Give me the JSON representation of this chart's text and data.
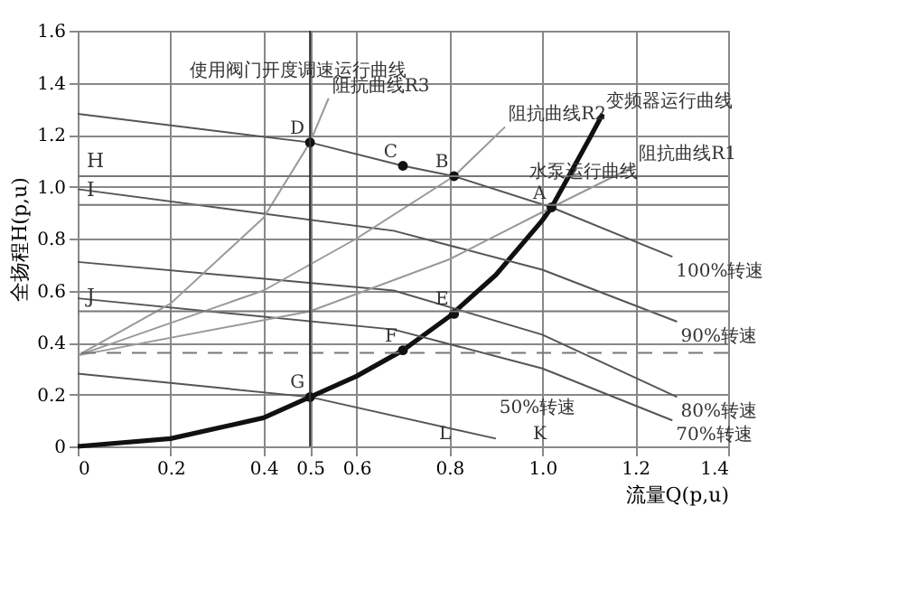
{
  "chart_data": {
    "type": "line",
    "xlabel": "流量Q(p,u)",
    "ylabel": "全扬程H(p,u)",
    "xlim": [
      0,
      1.4
    ],
    "ylim": [
      0,
      1.6
    ],
    "xticks": [
      0,
      0.2,
      0.4,
      0.5,
      0.6,
      0.8,
      {
        "value": 1,
        "label": "1.0"
      },
      1.2,
      1.4
    ],
    "yticks": [
      0,
      0.2,
      0.4,
      0.6,
      0.8,
      {
        "value": 1,
        "label": "1.0"
      },
      1.2,
      1.4,
      1.6
    ],
    "grid": true,
    "marker": "none",
    "line_style": "solid",
    "series": [
      {
        "name": "变频器运行曲线",
        "color": "#111111",
        "x": [
          0,
          0.2,
          0.4,
          0.5,
          0.6,
          0.7,
          0.8,
          0.9,
          1.0,
          1.02,
          1.1,
          1.13
        ],
        "values": [
          0,
          0.03,
          0.11,
          0.19,
          0.27,
          0.37,
          0.5,
          0.66,
          0.87,
          0.92,
          1.18,
          1.28
        ]
      },
      {
        "name": "100%转速",
        "color": "#555555",
        "x": [
          0,
          0.5,
          0.7,
          0.81,
          1.02,
          1.28
        ],
        "values": [
          1.28,
          1.17,
          1.08,
          1.04,
          0.92,
          0.73
        ]
      },
      {
        "name": "90%转速",
        "color": "#555555",
        "x": [
          0,
          0.68,
          1.0,
          1.29
        ],
        "values": [
          0.99,
          0.83,
          0.68,
          0.48
        ]
      },
      {
        "name": "80%转速",
        "color": "#555555",
        "x": [
          0,
          0.68,
          1.0,
          1.29
        ],
        "values": [
          0.71,
          0.6,
          0.43,
          0.19
        ]
      },
      {
        "name": "70%转速",
        "color": "#555555",
        "x": [
          0,
          0.68,
          1.0,
          1.28
        ],
        "values": [
          0.57,
          0.45,
          0.3,
          0.1
        ]
      },
      {
        "name": "50%转速",
        "color": "#555555",
        "x": [
          0,
          0.5,
          0.9
        ],
        "values": [
          0.28,
          0.19,
          0.03
        ]
      },
      {
        "name": "阻抗曲线R1",
        "color": "#999999",
        "x": [
          0,
          0.5,
          0.8,
          1.02,
          1.2
        ],
        "values": [
          0.35,
          0.52,
          0.72,
          0.92,
          1.08
        ]
      },
      {
        "name": "阻抗曲线R2",
        "color": "#999999",
        "x": [
          0,
          0.4,
          0.6,
          0.81,
          0.92
        ],
        "values": [
          0.35,
          0.6,
          0.8,
          1.04,
          1.23
        ]
      },
      {
        "name": "阻抗曲线R3",
        "color": "#999999",
        "x": [
          0,
          0.2,
          0.4,
          0.5,
          0.54
        ],
        "values": [
          0.35,
          0.55,
          0.88,
          1.17,
          1.34
        ]
      },
      {
        "type": "scatter",
        "marker": "circle",
        "color": "#111111",
        "x": [
          1.02,
          0.81,
          0.7,
          0.5,
          0.81,
          0.7,
          0.5
        ],
        "values": [
          0.92,
          1.04,
          1.08,
          1.17,
          0.51,
          0.37,
          0.19
        ]
      }
    ],
    "ref_lines": [
      {
        "axis": "y",
        "value": 1.04,
        "label": "H",
        "color": "#777777",
        "line_style": "solid"
      },
      {
        "axis": "y",
        "value": 0.93,
        "label": "I",
        "color": "#777777",
        "line_style": "solid"
      },
      {
        "axis": "y",
        "value": 0.52,
        "label": "J",
        "color": "#777777",
        "line_style": "solid"
      },
      {
        "axis": "y",
        "value": 0.36,
        "label": null,
        "color": "#777777",
        "line_style": "dashed"
      },
      {
        "axis": "x",
        "value": 0.5,
        "label": null,
        "color": "#333333",
        "line_style": "solid"
      }
    ],
    "annotations": [
      "使用阀门开度调速运行曲线",
      "水泵运行曲线",
      {
        "text": "A",
        "x": 1.02,
        "y": 0.92
      },
      {
        "text": "B",
        "x": 0.81,
        "y": 1.04
      },
      {
        "text": "C",
        "x": 0.7,
        "y": 1.08
      },
      {
        "text": "D",
        "x": 0.5,
        "y": 1.17
      },
      {
        "text": "E",
        "x": 0.81,
        "y": 0.51
      },
      {
        "text": "F",
        "x": 0.7,
        "y": 0.37
      },
      {
        "text": "G",
        "x": 0.5,
        "y": 0.19
      },
      "L",
      "K"
    ]
  }
}
